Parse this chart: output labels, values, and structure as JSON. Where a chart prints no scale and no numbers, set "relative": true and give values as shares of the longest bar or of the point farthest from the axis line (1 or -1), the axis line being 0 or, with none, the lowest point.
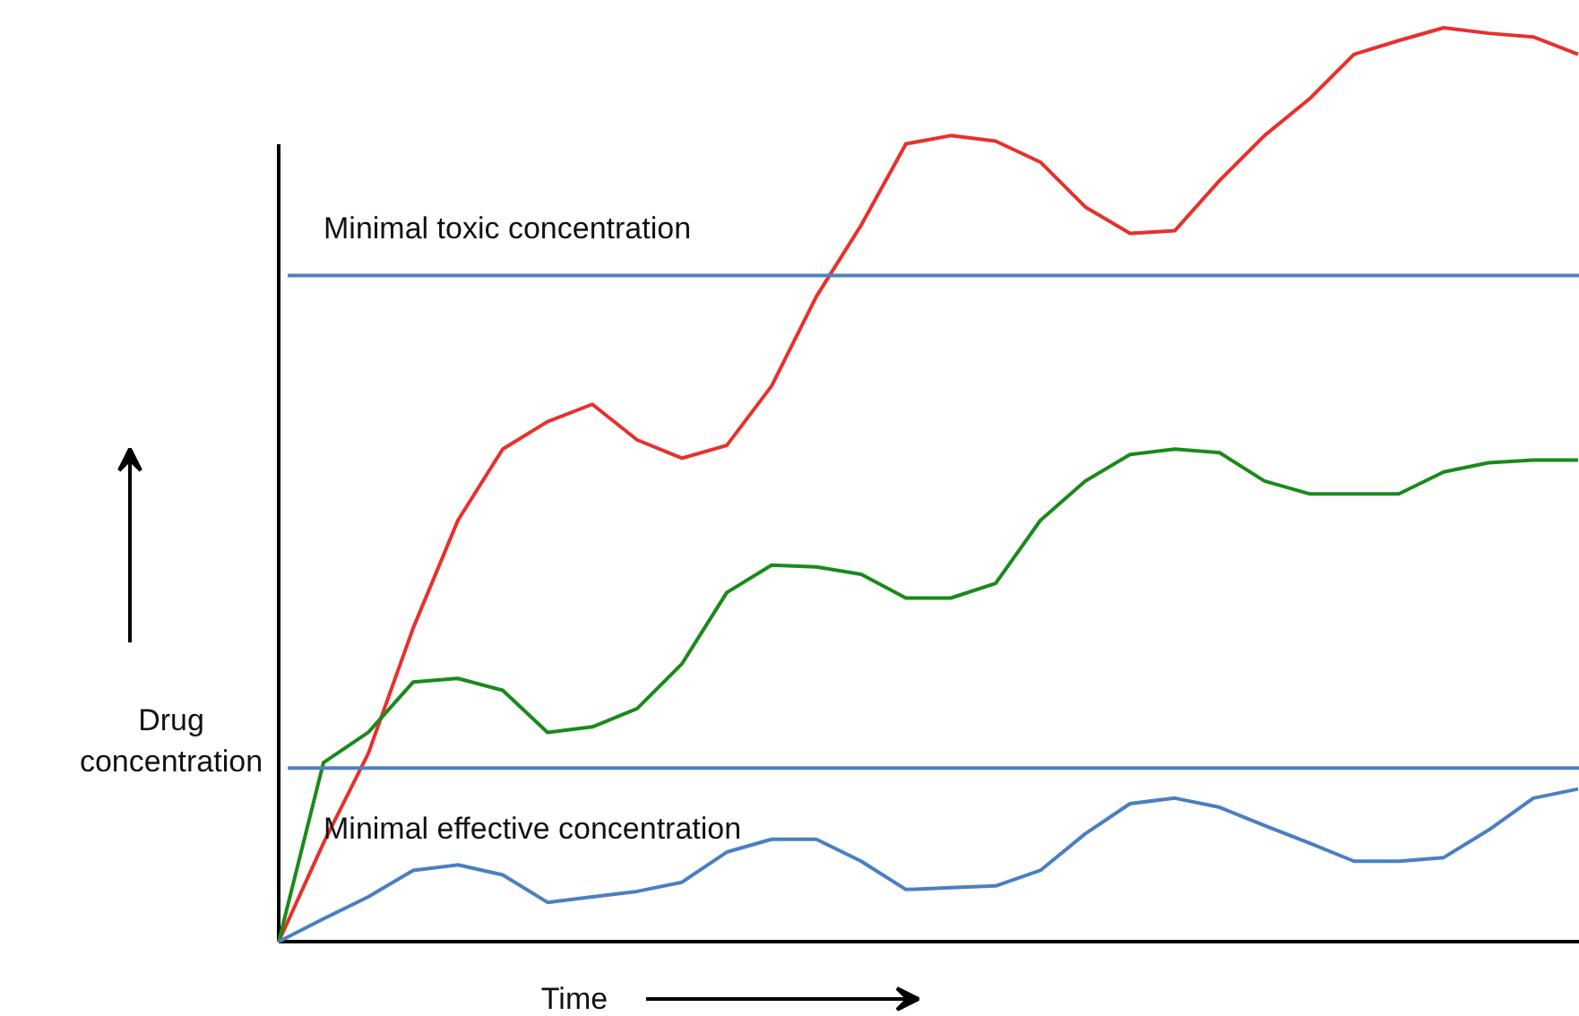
{
  "chart_data": {
    "type": "line",
    "relative": true,
    "xlabel": "Time",
    "ylabel": "Drug concentration",
    "categories": [
      null,
      null,
      null,
      null,
      null,
      null,
      null,
      null,
      null,
      null,
      null,
      null,
      null,
      null,
      null,
      null,
      null,
      null,
      null,
      null,
      null,
      null,
      null,
      null,
      null,
      null,
      null,
      null,
      null,
      null
    ],
    "series": [
      {
        "color": "#e8302a",
        "values": [
          0,
          0.108,
          0.206,
          0.343,
          0.461,
          0.539,
          0.569,
          0.588,
          0.549,
          0.529,
          0.543,
          0.608,
          0.706,
          0.784,
          0.873,
          0.882,
          0.876,
          0.853,
          0.804,
          0.775,
          0.778,
          0.833,
          0.882,
          0.922,
          0.971,
          0.986,
          1,
          0.994,
          0.99,
          0.971
        ]
      },
      {
        "color": "#1a8a1a",
        "values": [
          0,
          0.196,
          0.229,
          0.284,
          0.288,
          0.275,
          0.229,
          0.235,
          0.255,
          0.304,
          0.382,
          0.412,
          0.41,
          0.402,
          0.376,
          0.376,
          0.392,
          0.461,
          0.504,
          0.533,
          0.539,
          0.535,
          0.504,
          0.49,
          0.49,
          0.49,
          0.514,
          0.524,
          0.527,
          0.527
        ]
      },
      {
        "color": "#4a7fc1",
        "values": [
          0,
          0.025,
          0.049,
          0.078,
          0.084,
          0.073,
          0.043,
          0.049,
          0.055,
          0.065,
          0.098,
          0.112,
          0.112,
          0.088,
          0.057,
          0.059,
          0.061,
          0.078,
          0.118,
          0.151,
          0.157,
          0.147,
          0.127,
          0.108,
          0.088,
          0.088,
          0.092,
          0.122,
          0.157,
          0.167
        ]
      }
    ],
    "ref_lines": [
      {
        "axis": "y",
        "value": 0.729,
        "label": "Minimal toxic concentration",
        "color": "#4f81bd"
      },
      {
        "axis": "y",
        "value": 0.19,
        "label": "Minimal effective concentration",
        "color": "#4f81bd"
      }
    ],
    "grid": false
  }
}
